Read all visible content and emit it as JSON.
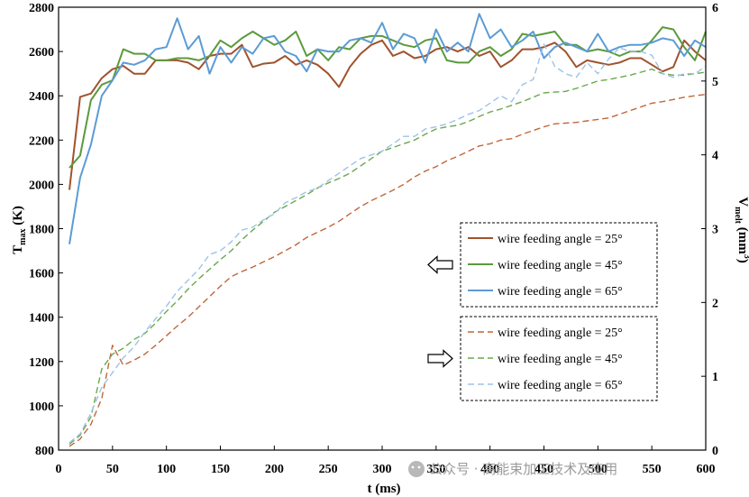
{
  "chart_data": {
    "type": "line",
    "xlabel": "t (ms)",
    "ylabel_left": {
      "main": "T",
      "sub": "max",
      "unit": " (K)"
    },
    "ylabel_right": {
      "main": "V",
      "sub": "melt",
      "unit": " (mm",
      "sup": "3",
      "close": ")"
    },
    "xlim": [
      0,
      600
    ],
    "ylim_left": [
      800,
      2800
    ],
    "ylim_right": [
      0,
      6
    ],
    "x_ticks": [
      0,
      50,
      100,
      150,
      200,
      250,
      300,
      350,
      400,
      450,
      500,
      550,
      600
    ],
    "y_left_ticks": [
      800,
      1000,
      1200,
      1400,
      1600,
      1800,
      2000,
      2200,
      2400,
      2600,
      2800
    ],
    "y_right_ticks": [
      0,
      1,
      2,
      3,
      4,
      5,
      6
    ],
    "grid": false,
    "x": [
      10,
      20,
      30,
      40,
      50,
      60,
      70,
      80,
      90,
      100,
      110,
      120,
      130,
      140,
      150,
      160,
      170,
      180,
      190,
      200,
      210,
      220,
      230,
      240,
      250,
      260,
      270,
      280,
      290,
      300,
      310,
      320,
      330,
      340,
      350,
      360,
      370,
      380,
      390,
      400,
      410,
      420,
      430,
      440,
      450,
      460,
      470,
      480,
      490,
      500,
      510,
      520,
      530,
      540,
      550,
      560,
      570,
      580,
      590,
      600
    ],
    "series": [
      {
        "name": "wire feeding angle = 25°",
        "axis": "left",
        "style": "solid",
        "color": "#a0522d",
        "values": [
          1975,
          2395,
          2410,
          2480,
          2520,
          2535,
          2500,
          2500,
          2560,
          2560,
          2560,
          2550,
          2520,
          2580,
          2590,
          2590,
          2630,
          2530,
          2545,
          2550,
          2580,
          2540,
          2560,
          2540,
          2500,
          2440,
          2530,
          2590,
          2630,
          2650,
          2580,
          2600,
          2570,
          2580,
          2610,
          2620,
          2600,
          2620,
          2580,
          2600,
          2530,
          2560,
          2610,
          2610,
          2620,
          2640,
          2600,
          2530,
          2560,
          2550,
          2540,
          2550,
          2570,
          2570,
          2540,
          2510,
          2530,
          2650,
          2600,
          2560
        ]
      },
      {
        "name": "wire feeding angle = 45°",
        "axis": "left",
        "style": "solid",
        "color": "#5a9a3c",
        "values": [
          2075,
          2130,
          2380,
          2450,
          2470,
          2610,
          2590,
          2590,
          2560,
          2560,
          2570,
          2570,
          2560,
          2580,
          2650,
          2620,
          2660,
          2690,
          2660,
          2630,
          2650,
          2690,
          2580,
          2610,
          2560,
          2620,
          2610,
          2660,
          2670,
          2670,
          2650,
          2630,
          2620,
          2650,
          2660,
          2560,
          2550,
          2550,
          2600,
          2620,
          2580,
          2610,
          2680,
          2670,
          2680,
          2690,
          2630,
          2630,
          2600,
          2610,
          2600,
          2580,
          2600,
          2600,
          2650,
          2710,
          2700,
          2620,
          2560,
          2690
        ]
      },
      {
        "name": "wire feeding angle = 65°",
        "axis": "left",
        "style": "solid",
        "color": "#5b9bd5",
        "values": [
          1730,
          2030,
          2180,
          2400,
          2470,
          2550,
          2540,
          2560,
          2610,
          2620,
          2750,
          2610,
          2670,
          2500,
          2620,
          2550,
          2620,
          2590,
          2660,
          2670,
          2600,
          2580,
          2510,
          2610,
          2600,
          2600,
          2650,
          2660,
          2640,
          2730,
          2610,
          2680,
          2660,
          2550,
          2700,
          2600,
          2640,
          2600,
          2770,
          2660,
          2700,
          2620,
          2650,
          2690,
          2570,
          2620,
          2640,
          2620,
          2600,
          2680,
          2600,
          2620,
          2630,
          2630,
          2640,
          2660,
          2650,
          2580,
          2650,
          2620
        ]
      },
      {
        "name": "wire feeding angle = 25°",
        "axis": "right",
        "style": "dashed",
        "color": "#c0673a",
        "values": [
          0.05,
          0.15,
          0.35,
          0.7,
          1.42,
          1.15,
          1.22,
          1.3,
          1.42,
          1.55,
          1.68,
          1.8,
          1.94,
          2.08,
          2.22,
          2.35,
          2.42,
          2.48,
          2.55,
          2.62,
          2.7,
          2.78,
          2.88,
          2.95,
          3.02,
          3.1,
          3.2,
          3.3,
          3.38,
          3.45,
          3.52,
          3.6,
          3.7,
          3.78,
          3.84,
          3.92,
          3.98,
          4.05,
          4.12,
          4.15,
          4.2,
          4.22,
          4.28,
          4.33,
          4.38,
          4.42,
          4.43,
          4.44,
          4.46,
          4.48,
          4.5,
          4.55,
          4.6,
          4.65,
          4.7,
          4.72,
          4.75,
          4.78,
          4.8,
          4.82
        ]
      },
      {
        "name": "wire feeding angle = 45°",
        "axis": "right",
        "style": "dashed",
        "color": "#6aa84f",
        "values": [
          0.08,
          0.2,
          0.45,
          1.1,
          1.3,
          1.38,
          1.5,
          1.58,
          1.72,
          1.88,
          2.02,
          2.18,
          2.32,
          2.45,
          2.58,
          2.7,
          2.85,
          2.98,
          3.1,
          3.22,
          3.3,
          3.38,
          3.46,
          3.55,
          3.62,
          3.68,
          3.75,
          3.85,
          3.95,
          4.05,
          4.1,
          4.15,
          4.2,
          4.28,
          4.35,
          4.38,
          4.4,
          4.45,
          4.52,
          4.58,
          4.62,
          4.67,
          4.72,
          4.78,
          4.84,
          4.85,
          4.86,
          4.9,
          4.95,
          5.0,
          5.02,
          5.05,
          5.08,
          5.12,
          5.16,
          5.1,
          5.08,
          5.08,
          5.1,
          5.12
        ]
      },
      {
        "name": "wire feeding angle = 65°",
        "axis": "right",
        "style": "dashed",
        "color": "#9dc3e6",
        "values": [
          0.1,
          0.22,
          0.5,
          0.85,
          1.05,
          1.25,
          1.4,
          1.6,
          1.78,
          1.95,
          2.15,
          2.3,
          2.45,
          2.65,
          2.7,
          2.82,
          2.98,
          3.02,
          3.12,
          3.2,
          3.35,
          3.42,
          3.5,
          3.55,
          3.65,
          3.75,
          3.85,
          3.95,
          4.0,
          4.05,
          4.15,
          4.25,
          4.25,
          4.35,
          4.38,
          4.42,
          4.48,
          4.55,
          4.6,
          4.7,
          4.8,
          4.72,
          4.95,
          5.02,
          5.5,
          5.2,
          5.1,
          5.05,
          5.25,
          5.1,
          5.3,
          5.45,
          5.4,
          5.4,
          5.35,
          5.1,
          5.05,
          5.1,
          5.1,
          5.2
        ]
      }
    ],
    "legend_groups": [
      {
        "arrow": "left",
        "entries": [
          0,
          1,
          2
        ]
      },
      {
        "arrow": "right",
        "entries": [
          3,
          4,
          5
        ]
      }
    ]
  },
  "watermark": "公众号 · 高能束加工技术及应用"
}
